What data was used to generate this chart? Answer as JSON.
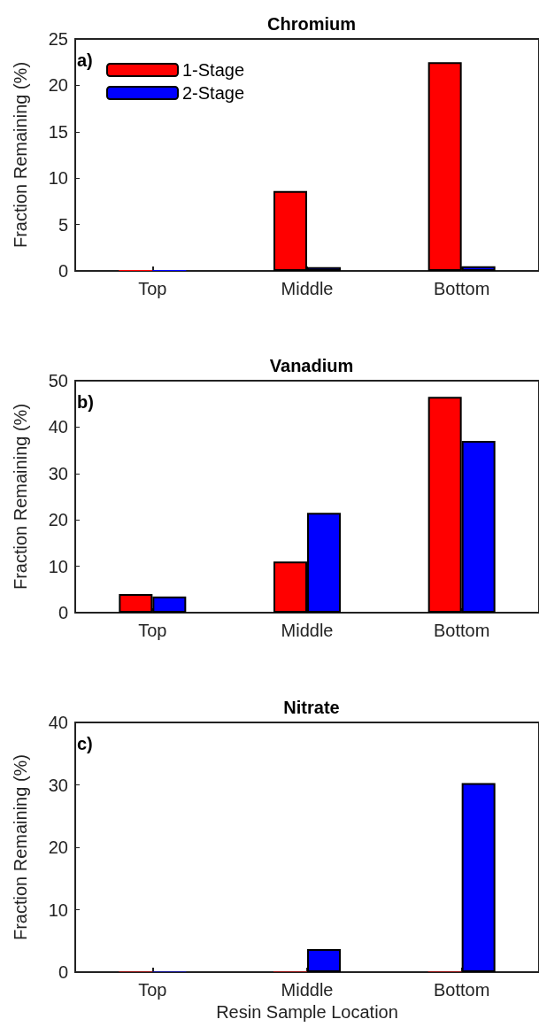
{
  "chart_data": [
    {
      "type": "bar",
      "title": "Chromium",
      "ylabel": "Fraction Remaining (%)",
      "annotations": [
        "a)"
      ],
      "categories": [
        "Top",
        "Middle",
        "Bottom"
      ],
      "series": [
        {
          "name": "1-Stage",
          "color": "#ff0000",
          "values": [
            0.1,
            8.6,
            22.5
          ]
        },
        {
          "name": "2-Stage",
          "color": "#0000ff",
          "values": [
            0.1,
            0.4,
            0.5
          ]
        }
      ],
      "ylim": [
        0,
        25
      ],
      "yticks": [
        0,
        5,
        10,
        15,
        20,
        25
      ],
      "legend": "top left",
      "grid": false
    },
    {
      "type": "bar",
      "title": "Vanadium",
      "ylabel": "Fraction Remaining (%)",
      "annotations": [
        "b)"
      ],
      "categories": [
        "Top",
        "Middle",
        "Bottom"
      ],
      "series": [
        {
          "color": "#ff0000",
          "values": [
            4,
            11,
            46.5
          ]
        },
        {
          "color": "#0000ff",
          "values": [
            3.5,
            21.5,
            37
          ]
        }
      ],
      "ylim": [
        0,
        50
      ],
      "yticks": [
        0,
        10,
        20,
        30,
        40,
        50
      ],
      "grid": false
    },
    {
      "type": "bar",
      "title": "Nitrate",
      "xlabel": "Resin Sample Location",
      "ylabel": "Fraction Remaining (%)",
      "annotations": [
        "c)"
      ],
      "categories": [
        "Top",
        "Middle",
        "Bottom"
      ],
      "series": [
        {
          "color": "#ff0000",
          "values": [
            0.1,
            0.1,
            0.1
          ]
        },
        {
          "color": "#0000ff",
          "values": [
            0.1,
            3.7,
            30.3
          ]
        }
      ],
      "ylim": [
        0,
        40
      ],
      "yticks": [
        0,
        10,
        20,
        30,
        40
      ],
      "grid": false
    }
  ]
}
